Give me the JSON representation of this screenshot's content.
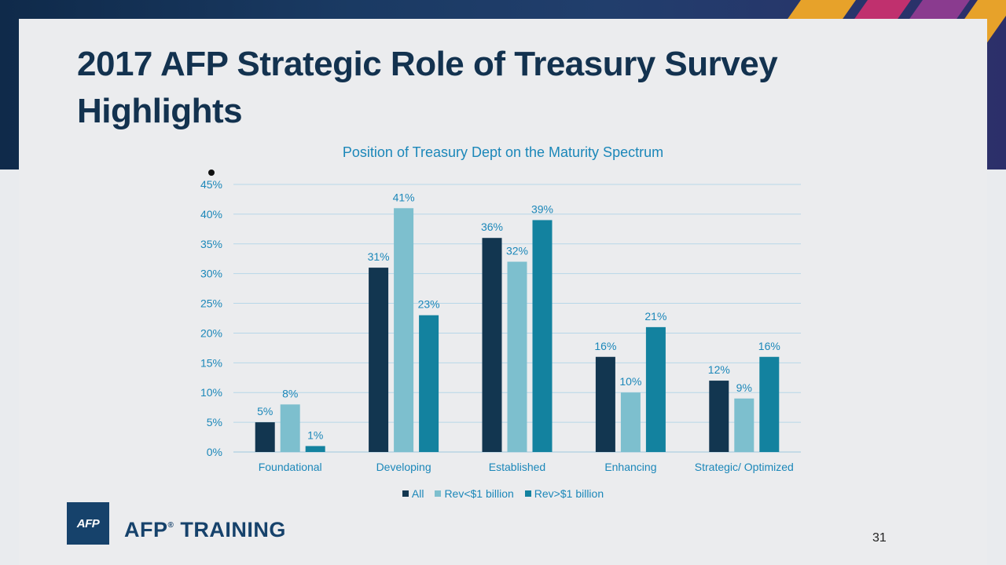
{
  "slide": {
    "title": "2017 AFP Strategic Role of Treasury Survey Highlights",
    "page_number": "31",
    "brand": {
      "logo_text": "AFP",
      "name": "AFP",
      "suffix": "TRAINING",
      "mark": "®"
    }
  },
  "colors": {
    "all": "#123650",
    "rev_lt": "#7dbfce",
    "rev_gt": "#13829f",
    "accent": "#1b87b9"
  },
  "chart_data": {
    "type": "bar",
    "title": "Position of Treasury Dept on the Maturity Spectrum",
    "xlabel": "",
    "ylabel": "",
    "categories": [
      "Foundational",
      "Developing",
      "Established",
      "Enhancing",
      "Strategic/ Optimized"
    ],
    "series": [
      {
        "name": "All",
        "values": [
          5,
          31,
          36,
          16,
          12
        ],
        "labels": [
          "5%",
          "31%",
          "36%",
          "16%",
          "12%"
        ]
      },
      {
        "name": "Rev<$1 billion",
        "values": [
          8,
          41,
          32,
          10,
          9
        ],
        "labels": [
          "8%",
          "41%",
          "32%",
          "10%",
          "9%"
        ]
      },
      {
        "name": "Rev>$1 billion",
        "values": [
          1,
          23,
          39,
          21,
          16
        ],
        "labels": [
          "1%",
          "23%",
          "39%",
          "21%",
          "16%"
        ]
      }
    ],
    "ylim": [
      0,
      45
    ],
    "yticks": [
      "0%",
      "5%",
      "10%",
      "15%",
      "20%",
      "25%",
      "30%",
      "35%",
      "40%",
      "45%"
    ],
    "grid": true,
    "legend_position": "bottom"
  }
}
